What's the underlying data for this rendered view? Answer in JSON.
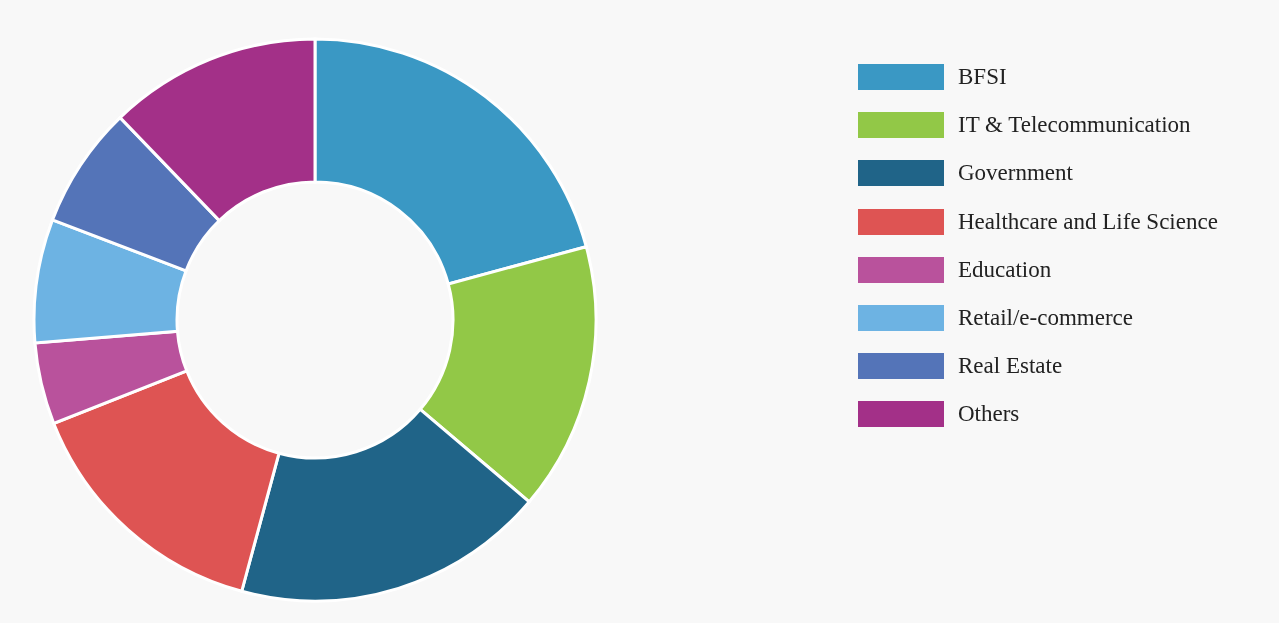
{
  "chart_data": {
    "type": "donut",
    "categories": [
      "BFSI",
      "IT & Telecommunication",
      "Government",
      "Healthcare and Life Science",
      "Education",
      "Retail/e-commerce",
      "Real Estate",
      "Others"
    ],
    "values": [
      20.8,
      15.4,
      18,
      14.8,
      4.7,
      7.1,
      7,
      12.2
    ],
    "colors": [
      "#3a98c4",
      "#92c847",
      "#206488",
      "#de5453",
      "#b9529c",
      "#6db3e3",
      "#5474b8",
      "#a33088"
    ],
    "legend": "right"
  }
}
